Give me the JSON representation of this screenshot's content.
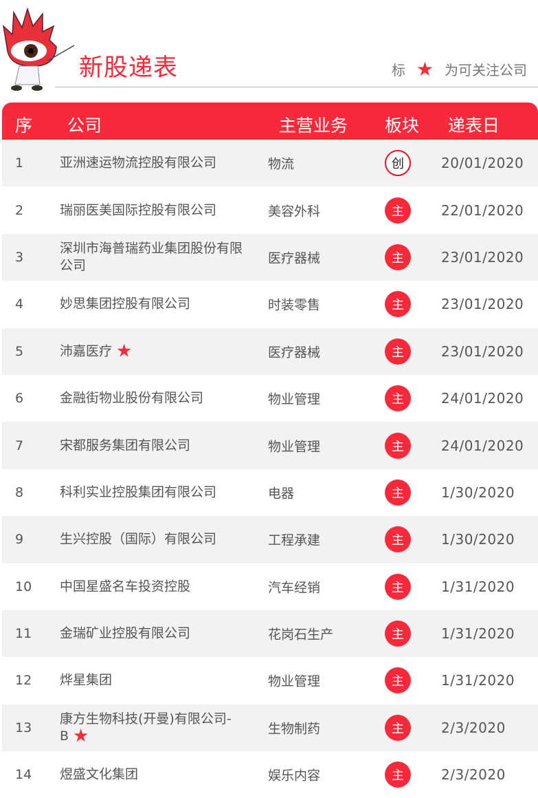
{
  "header": {
    "title": "新股递表",
    "legend_prefix": "标",
    "legend_suffix": "为可关注公司"
  },
  "columns": [
    "序",
    "公司",
    "主营业务",
    "板块",
    "递表日"
  ],
  "colors": {
    "accent": "#f8293a"
  },
  "rows": [
    {
      "no": "1",
      "company": "亚洲速运物流控股有限公司",
      "business": "物流",
      "board": "创",
      "date": "20/01/2020",
      "star": false
    },
    {
      "no": "2",
      "company": "瑞丽医美国际控股有限公司",
      "business": "美容外科",
      "board": "主",
      "date": "22/01/2020",
      "star": false
    },
    {
      "no": "3",
      "company": "深圳市海普瑞药业集团股份有限公司",
      "business": "医疗器械",
      "board": "主",
      "date": "23/01/2020",
      "star": false
    },
    {
      "no": "4",
      "company": "妙思集团控股有限公司",
      "business": "时装零售",
      "board": "主",
      "date": "23/01/2020",
      "star": false
    },
    {
      "no": "5",
      "company": "沛嘉医疗",
      "business": "医疗器械",
      "board": "主",
      "date": "23/01/2020",
      "star": true
    },
    {
      "no": "6",
      "company": "金融街物业股份有限公司",
      "business": "物业管理",
      "board": "主",
      "date": "24/01/2020",
      "star": false
    },
    {
      "no": "7",
      "company": "宋都服务集团有限公司",
      "business": "物业管理",
      "board": "主",
      "date": "24/01/2020",
      "star": false
    },
    {
      "no": "8",
      "company": "科利实业控股集团有限公司",
      "business": "电器",
      "board": "主",
      "date": "1/30/2020",
      "star": false
    },
    {
      "no": "9",
      "company": "生兴控股（国际）有限公司",
      "business": "工程承建",
      "board": "主",
      "date": "1/30/2020",
      "star": false
    },
    {
      "no": "10",
      "company": "中国星盛名车投资控股",
      "business": "汽车经销",
      "board": "主",
      "date": "1/31/2020",
      "star": false
    },
    {
      "no": "11",
      "company": "金瑞矿业控股有限公司",
      "business": "花岗石生产",
      "board": "主",
      "date": "1/31/2020",
      "star": false
    },
    {
      "no": "12",
      "company": "烨星集团",
      "business": "物业管理",
      "board": "主",
      "date": "1/31/2020",
      "star": false
    },
    {
      "no": "13",
      "company": "康方生物科技(开曼)有限公司- B",
      "business": "生物制药",
      "board": "主",
      "date": "2/3/2020",
      "star": true
    },
    {
      "no": "14",
      "company": "煜盛文化集团",
      "business": "娱乐内容",
      "board": "主",
      "date": "2/3/2020",
      "star": false
    }
  ]
}
